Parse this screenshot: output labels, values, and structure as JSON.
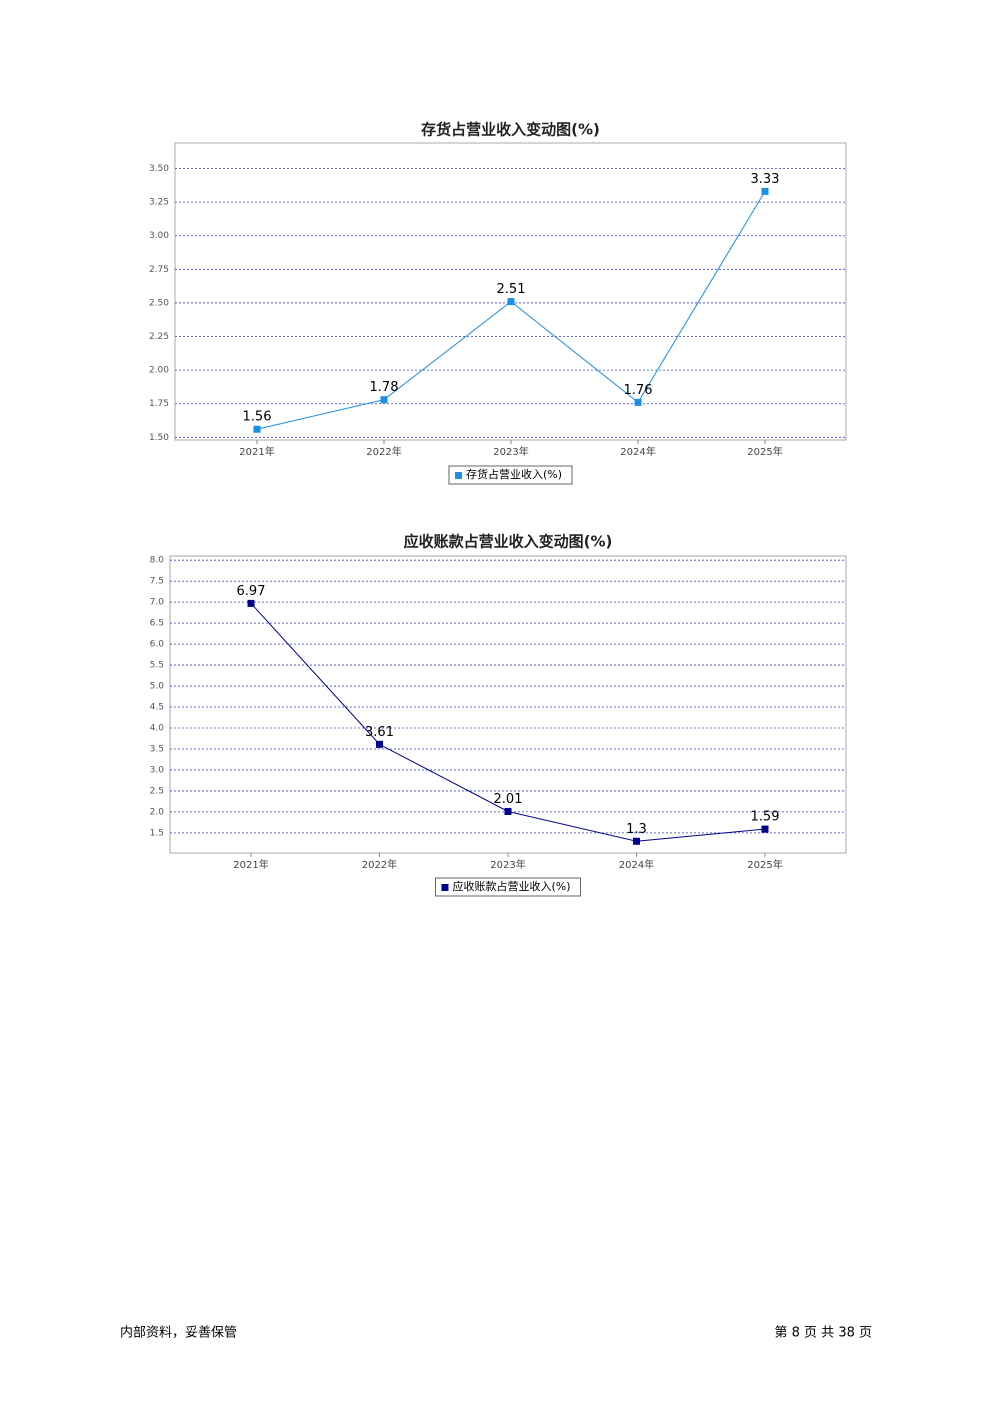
{
  "chart_data": [
    {
      "type": "line",
      "title": "存货占营业收入变动图(%)",
      "categories": [
        "2021年",
        "2022年",
        "2023年",
        "2024年",
        "2025年"
      ],
      "series": [
        {
          "name": "存货占营业收入(%)",
          "color": "#1a8fe3",
          "values": [
            1.56,
            1.78,
            2.51,
            1.76,
            3.33
          ]
        }
      ],
      "ylim": [
        1.48,
        3.69
      ],
      "yticks": [
        {
          "value": 1.5,
          "label": "1.50"
        },
        1.75,
        {
          "value": 2,
          "label": "2.00"
        },
        2.25,
        {
          "value": 2.5,
          "label": "2.50"
        },
        2.75,
        {
          "value": 3,
          "label": "3.00"
        },
        3.25,
        {
          "value": 3.5,
          "label": "3.50"
        }
      ],
      "grid": true
    },
    {
      "type": "line",
      "title": "应收账款占营业收入变动图(%)",
      "categories": [
        "2021年",
        "2022年",
        "2023年",
        "2024年",
        "2025年"
      ],
      "series": [
        {
          "name": "应收账款占营业收入(%)",
          "color": "#00008b",
          "values": [
            6.97,
            3.61,
            2.01,
            1.3,
            1.59
          ]
        }
      ],
      "ylim": [
        1.02,
        8.1
      ],
      "yticks": [
        1.5,
        {
          "value": 2,
          "label": "2.0"
        },
        2.5,
        {
          "value": 3,
          "label": "3.0"
        },
        3.5,
        {
          "value": 4,
          "label": "4.0"
        },
        4.5,
        {
          "value": 5,
          "label": "5.0"
        },
        5.5,
        {
          "value": 6,
          "label": "6.0"
        },
        6.5,
        {
          "value": 7,
          "label": "7.0"
        },
        7.5,
        {
          "value": 8,
          "label": "8.0"
        }
      ],
      "grid": true
    }
  ],
  "footer": {
    "left": "内部资料，妥善保管",
    "right": "第 8 页 共 38 页"
  }
}
